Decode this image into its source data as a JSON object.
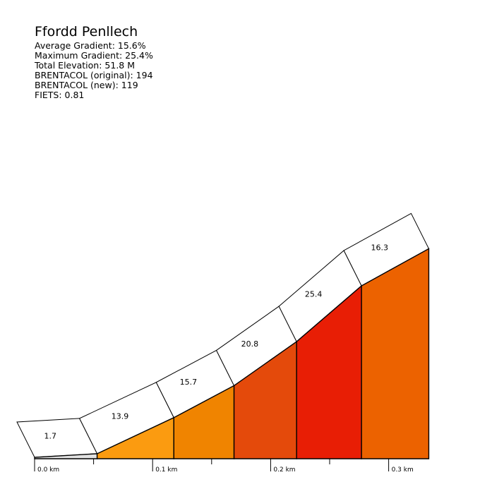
{
  "stats": {
    "title": "Ffordd Penllech",
    "average": "Average Gradient: 15.6%",
    "maximum": "Maximum Gradient: 25.4%",
    "elevation": "Total Elevation: 51.8 M",
    "brentacol_original": "BRENTACOL (original): 194",
    "brentacol_new": "BRENTACOL (new): 119",
    "fiets": "FIETS: 0.81"
  },
  "chart_data": {
    "type": "area",
    "title": "Ffordd Penllech",
    "x_unit": "km",
    "y_unit": "M",
    "xlim": [
      0,
      0.33
    ],
    "x_ticks": [
      "0.0 km",
      "0.1 km",
      "0.2 km",
      "0.3 km"
    ],
    "segments": [
      {
        "start_km": 0.0,
        "end_km": 0.053,
        "gradient": 1.7,
        "label": "1.7",
        "color": "#e2e2e2"
      },
      {
        "start_km": 0.053,
        "end_km": 0.118,
        "gradient": 13.9,
        "label": "13.9",
        "color": "#fb9b10"
      },
      {
        "start_km": 0.118,
        "end_km": 0.169,
        "gradient": 15.7,
        "label": "15.7",
        "color": "#f08400"
      },
      {
        "start_km": 0.169,
        "end_km": 0.222,
        "gradient": 20.8,
        "label": "20.8",
        "color": "#e44a0b"
      },
      {
        "start_km": 0.222,
        "end_km": 0.277,
        "gradient": 25.4,
        "label": "25.4",
        "color": "#e81e05"
      },
      {
        "start_km": 0.277,
        "end_km": 0.334,
        "gradient": 16.3,
        "label": "16.3",
        "color": "#ec6200"
      }
    ]
  }
}
